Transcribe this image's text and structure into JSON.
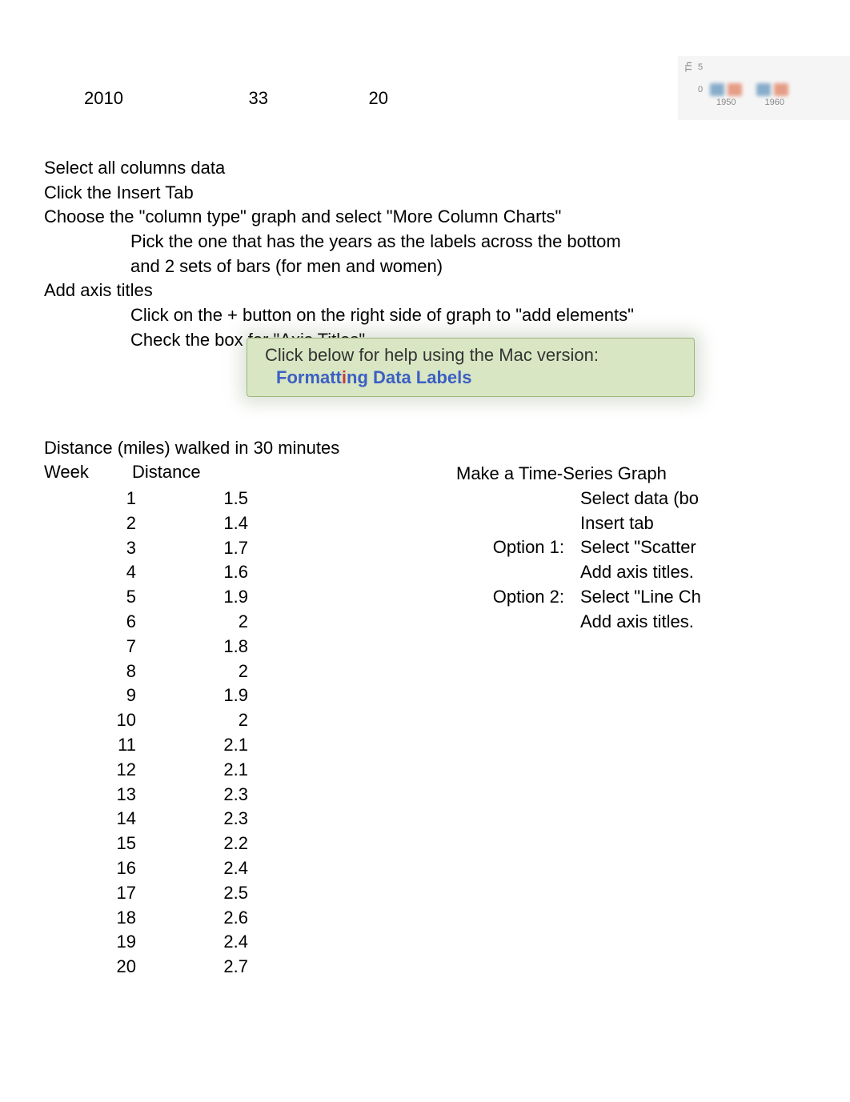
{
  "top_row": {
    "year": "2010",
    "val1": "33",
    "val2": "20"
  },
  "mini_chart": {
    "ylabel": "Th",
    "yticks": [
      "5",
      "0"
    ],
    "xlabels": [
      "1950",
      "1960"
    ],
    "series_colors": [
      "#5b8fb9",
      "#e07856"
    ],
    "bg": "#f5f5f5"
  },
  "instructions": {
    "l1": "Select all columns data",
    "l2": "Click the Insert Tab",
    "l3": "Choose the \"column type\" graph and select \"More Column Charts\"",
    "l4": "Pick the one that has the years as the labels across the bottom",
    "l5": "and 2 sets of bars (for men and women)",
    "l6": "Add axis titles",
    "l7": "Click on the + button on the right side of graph to \"add elements\"",
    "l8": "Check the box for \"Axis Titles\""
  },
  "help": {
    "title": "Click below for help using the Mac version:",
    "link_pre": "Formatt",
    "link_i": "i",
    "link_post": "ng Data Labels"
  },
  "distance": {
    "title": "Distance (miles) walked in 30 minutes",
    "col1": "Week",
    "col2": "Distance",
    "rows": [
      {
        "w": "1",
        "d": "1.5"
      },
      {
        "w": "2",
        "d": "1.4"
      },
      {
        "w": "3",
        "d": "1.7"
      },
      {
        "w": "4",
        "d": "1.6"
      },
      {
        "w": "5",
        "d": "1.9"
      },
      {
        "w": "6",
        "d": "2"
      },
      {
        "w": "7",
        "d": "1.8"
      },
      {
        "w": "8",
        "d": "2"
      },
      {
        "w": "9",
        "d": "1.9"
      },
      {
        "w": "10",
        "d": "2"
      },
      {
        "w": "11",
        "d": "2.1"
      },
      {
        "w": "12",
        "d": "2.1"
      },
      {
        "w": "13",
        "d": "2.3"
      },
      {
        "w": "14",
        "d": "2.3"
      },
      {
        "w": "15",
        "d": "2.2"
      },
      {
        "w": "16",
        "d": "2.4"
      },
      {
        "w": "17",
        "d": "2.5"
      },
      {
        "w": "18",
        "d": "2.6"
      },
      {
        "w": "19",
        "d": "2.4"
      },
      {
        "w": "20",
        "d": "2.7"
      }
    ]
  },
  "right": {
    "heading": "Make a Time-Series Graph",
    "r1": "Select data (bo",
    "r2": "Insert tab",
    "opt1_label": "Option 1:",
    "r3": "Select \"Scatter",
    "r6": "Add axis titles.",
    "opt2_label": "Option 2:",
    "r10": "Select \"Line Ch",
    "r14": "Add axis titles."
  }
}
